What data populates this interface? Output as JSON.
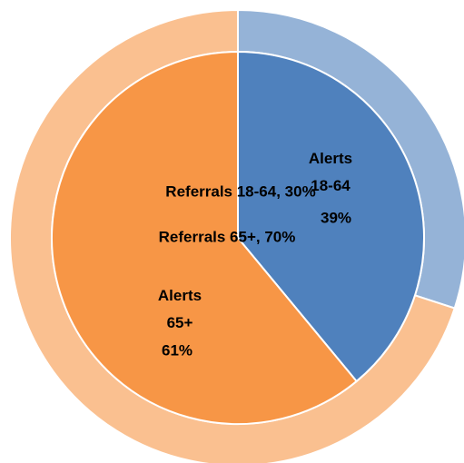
{
  "chart_data": {
    "type": "pie",
    "series": [
      {
        "categories": [
          "Referrals 18-64",
          "Referrals 65+"
        ],
        "values": [
          30,
          70
        ],
        "colors": [
          "#95b3d7",
          "#fac090"
        ],
        "value_labels": [
          "Referrals 18-64, 30%",
          "Referrals 65+, 70%"
        ]
      },
      {
        "categories": [
          "Alerts 18-64",
          "Alerts 65+"
        ],
        "values": [
          39,
          61
        ],
        "colors": [
          "#4f81bd",
          "#f79646"
        ],
        "value_labels": [
          "39%",
          "61%"
        ]
      }
    ]
  }
}
